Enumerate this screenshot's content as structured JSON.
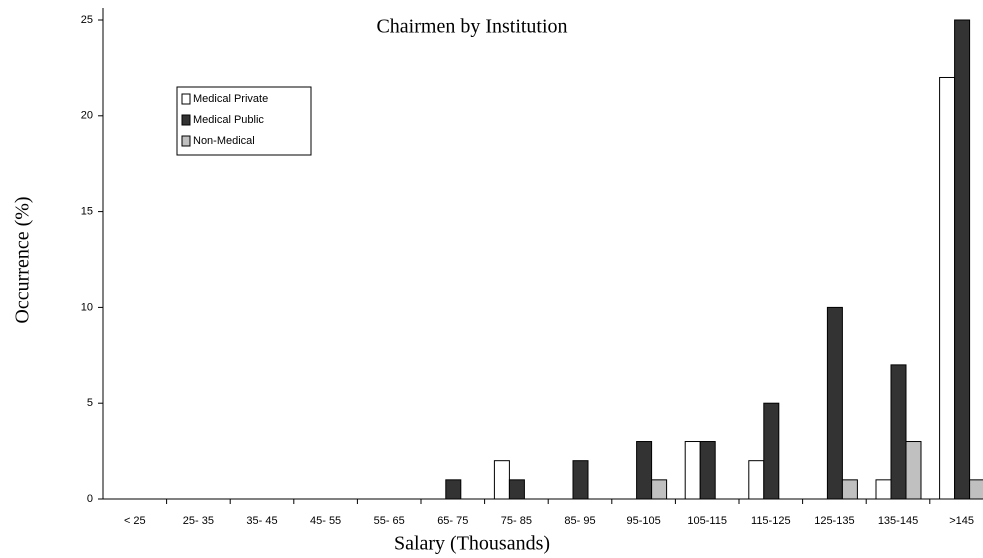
{
  "chart_data": {
    "type": "bar",
    "title": "Chairmen by Institution",
    "xlabel": "Salary (Thousands)",
    "ylabel": "Occurrence (%)",
    "categories": [
      "< 25",
      "25- 35",
      "35- 45",
      "45- 55",
      "55- 65",
      "65- 75",
      "75- 85",
      "85- 95",
      "95-105",
      "105-115",
      "115-125",
      "125-135",
      "135-145",
      ">145"
    ],
    "series": [
      {
        "name": "Medical Private",
        "color": "#ffffff",
        "values": [
          0,
          0,
          0,
          0,
          0,
          0,
          2,
          0,
          0,
          3,
          2,
          0,
          1,
          22
        ]
      },
      {
        "name": "Medical Public",
        "color": "#333333",
        "values": [
          0,
          0,
          0,
          0,
          0,
          1,
          1,
          2,
          3,
          3,
          5,
          10,
          7,
          25
        ]
      },
      {
        "name": "Non-Medical",
        "color": "#c0c0c0",
        "values": [
          0,
          0,
          0,
          0,
          0,
          0,
          0,
          0,
          1,
          0,
          0,
          1,
          3,
          1
        ]
      }
    ],
    "ylim": [
      0,
      25
    ],
    "yticks": [
      0,
      5,
      10,
      15,
      20,
      25
    ],
    "grid": false,
    "legend": "upper left"
  }
}
